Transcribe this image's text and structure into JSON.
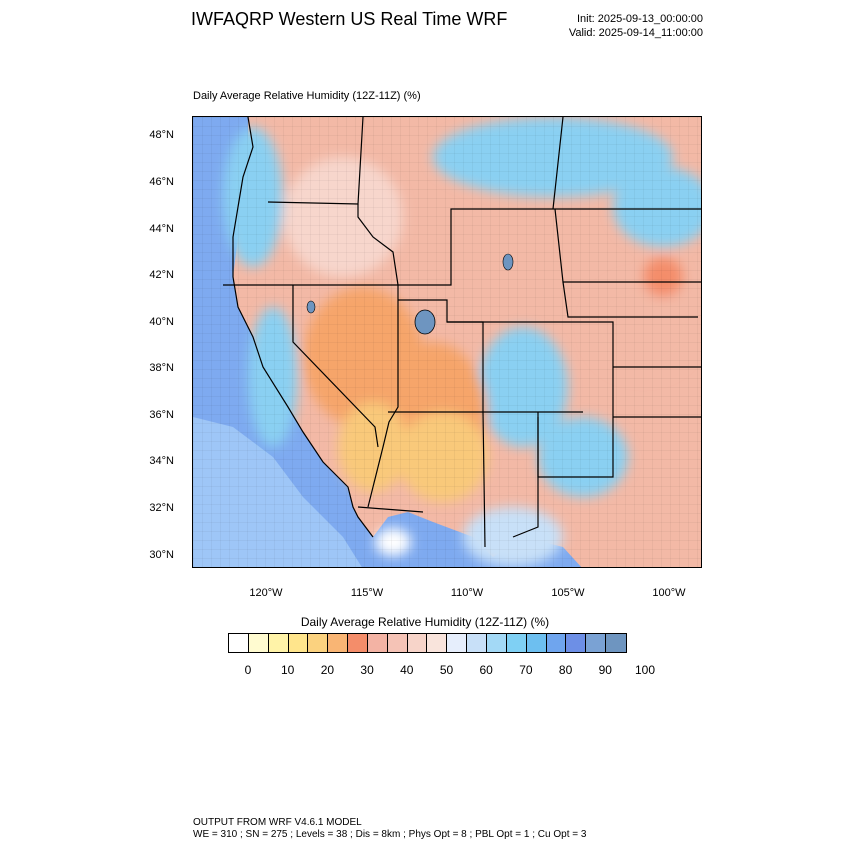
{
  "header": {
    "title": "IWFAQRP Western US Real Time WRF",
    "init": "Init: 2025-09-13_00:00:00",
    "valid": "Valid: 2025-09-14_11:00:00"
  },
  "plot_title": "Daily Average Relative Humidity (12Z-11Z)   (%)",
  "map": {
    "lat_labels": [
      "48°N",
      "46°N",
      "44°N",
      "42°N",
      "40°N",
      "38°N",
      "36°N",
      "34°N",
      "32°N",
      "30°N"
    ],
    "lon_labels": [
      "120°W",
      "115°W",
      "110°W",
      "105°W",
      "100°W"
    ],
    "colors": {
      "ocean": "#7eaaf0",
      "deep_ocean": "#9ec6f7",
      "dry_orange": "#f6a56a",
      "very_dry": "#f9c97a",
      "moderate": "#f3b9a6",
      "pinkish": "#f7d6cc",
      "humid_blue": "#8ad0f2",
      "boundary": "#000000"
    }
  },
  "colorbar": {
    "title": "Daily Average Relative Humidity (12Z-11Z)  (%)",
    "colors": [
      "#ffffff",
      "#fffbd0",
      "#fff3a8",
      "#ffe58c",
      "#fbd27f",
      "#f9b574",
      "#f48d6a",
      "#f3b3a4",
      "#f5c3b6",
      "#f7d4c9",
      "#f9e4dc",
      "#e6eefc",
      "#c8e0f8",
      "#a3d9f6",
      "#7fd0f4",
      "#6dbff0",
      "#6fa5ee",
      "#6d8fe6",
      "#7aa2d4",
      "#6e95c0"
    ],
    "labels": [
      "0",
      "10",
      "20",
      "30",
      "40",
      "50",
      "60",
      "70",
      "80",
      "90",
      "100"
    ]
  },
  "footer": {
    "line1": "OUTPUT FROM WRF V4.6.1 MODEL",
    "line2": "WE = 310 ; SN = 275 ; Levels = 38 ; Dis = 8km ; Phys Opt = 8 ; PBL Opt = 1 ; Cu Opt = 3"
  }
}
